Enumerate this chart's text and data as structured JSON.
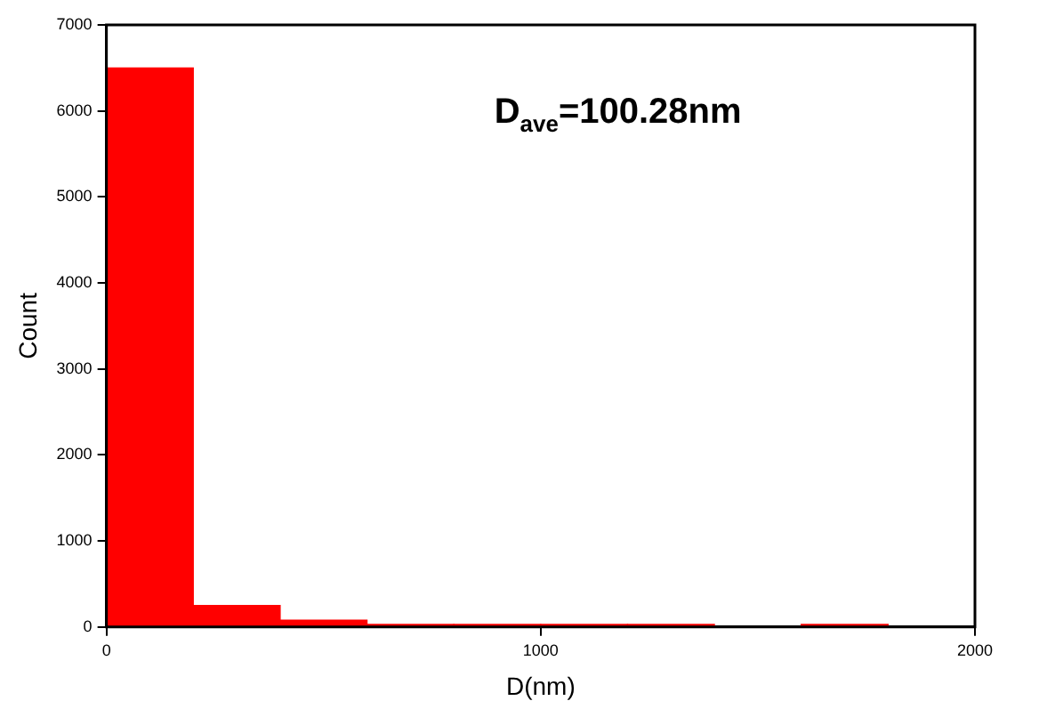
{
  "chart_data": {
    "type": "histogram",
    "xlabel": "D(nm)",
    "ylabel": "Count",
    "bins": [
      0,
      200,
      400,
      600,
      800,
      1000,
      1200,
      1400,
      1600,
      1800,
      2000
    ],
    "values": [
      6500,
      250,
      80,
      30,
      30,
      30,
      30,
      0,
      30,
      0
    ],
    "color": "#ff0000",
    "xlim": [
      0,
      2000
    ],
    "xticks": [
      0,
      1000,
      2000
    ],
    "ylim": [
      0,
      7000
    ],
    "yticks": [
      0,
      1000,
      2000,
      3000,
      4000,
      5000,
      6000,
      7000
    ],
    "grid": false,
    "legend": false,
    "annotations": [
      "D$_{ave}$=100.28nm"
    ]
  }
}
